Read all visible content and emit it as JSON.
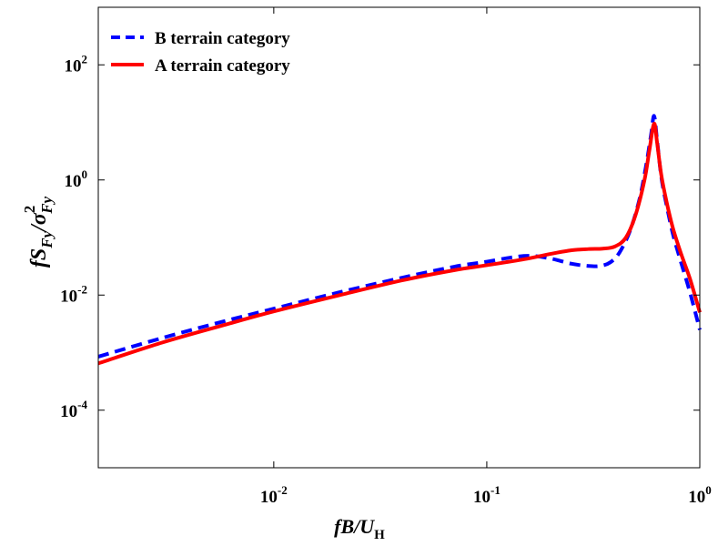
{
  "chart_data": {
    "type": "line",
    "xscale": "log",
    "yscale": "log",
    "xlim": [
      0.0015,
      1
    ],
    "ylim": [
      1e-05,
      1000
    ],
    "xticks": [
      {
        "value": 0.01,
        "base": "10",
        "exp": "-2"
      },
      {
        "value": 0.1,
        "base": "10",
        "exp": "-1"
      },
      {
        "value": 1,
        "base": "10",
        "exp": "0"
      }
    ],
    "yticks": [
      {
        "value": 0.0001,
        "base": "10",
        "exp": "-4"
      },
      {
        "value": 0.01,
        "base": "10",
        "exp": "-2"
      },
      {
        "value": 1,
        "base": "10",
        "exp": "0"
      },
      {
        "value": 100,
        "base": "10",
        "exp": "2"
      }
    ],
    "xlabel": {
      "main": "fB/U",
      "sub": "H"
    },
    "ylabel": {
      "p1": "fS",
      "sub1": "Fy",
      "p2": "/σ",
      "sup": "2",
      "sub2": "Fy"
    },
    "legend_position": "top-left",
    "grid": false,
    "series": [
      {
        "name": "B terrain category",
        "color": "#0000ff",
        "style": "dashed",
        "points": [
          [
            0.0015,
            0.00085
          ],
          [
            0.003,
            0.0018
          ],
          [
            0.006,
            0.0036
          ],
          [
            0.01,
            0.0058
          ],
          [
            0.02,
            0.011
          ],
          [
            0.04,
            0.02
          ],
          [
            0.07,
            0.031
          ],
          [
            0.1,
            0.038
          ],
          [
            0.13,
            0.045
          ],
          [
            0.16,
            0.048
          ],
          [
            0.2,
            0.043
          ],
          [
            0.25,
            0.035
          ],
          [
            0.3,
            0.032
          ],
          [
            0.34,
            0.032
          ],
          [
            0.38,
            0.037
          ],
          [
            0.42,
            0.055
          ],
          [
            0.47,
            0.13
          ],
          [
            0.52,
            0.45
          ],
          [
            0.56,
            1.8
          ],
          [
            0.59,
            6.0
          ],
          [
            0.61,
            13.0
          ],
          [
            0.63,
            5.0
          ],
          [
            0.66,
            1.1
          ],
          [
            0.7,
            0.35
          ],
          [
            0.75,
            0.11
          ],
          [
            0.82,
            0.035
          ],
          [
            0.9,
            0.011
          ],
          [
            1.0,
            0.0025
          ]
        ]
      },
      {
        "name": "A terrain category",
        "color": "#ff0000",
        "style": "solid",
        "points": [
          [
            0.0015,
            0.00065
          ],
          [
            0.003,
            0.0015
          ],
          [
            0.006,
            0.0031
          ],
          [
            0.01,
            0.0052
          ],
          [
            0.02,
            0.0098
          ],
          [
            0.04,
            0.018
          ],
          [
            0.07,
            0.027
          ],
          [
            0.1,
            0.033
          ],
          [
            0.15,
            0.042
          ],
          [
            0.2,
            0.052
          ],
          [
            0.25,
            0.06
          ],
          [
            0.3,
            0.063
          ],
          [
            0.35,
            0.064
          ],
          [
            0.4,
            0.07
          ],
          [
            0.45,
            0.1
          ],
          [
            0.5,
            0.25
          ],
          [
            0.55,
            1.0
          ],
          [
            0.58,
            3.3
          ],
          [
            0.61,
            9.5
          ],
          [
            0.63,
            4.5
          ],
          [
            0.66,
            1.2
          ],
          [
            0.7,
            0.4
          ],
          [
            0.75,
            0.14
          ],
          [
            0.82,
            0.05
          ],
          [
            0.9,
            0.019
          ],
          [
            1.0,
            0.005
          ]
        ]
      }
    ]
  }
}
